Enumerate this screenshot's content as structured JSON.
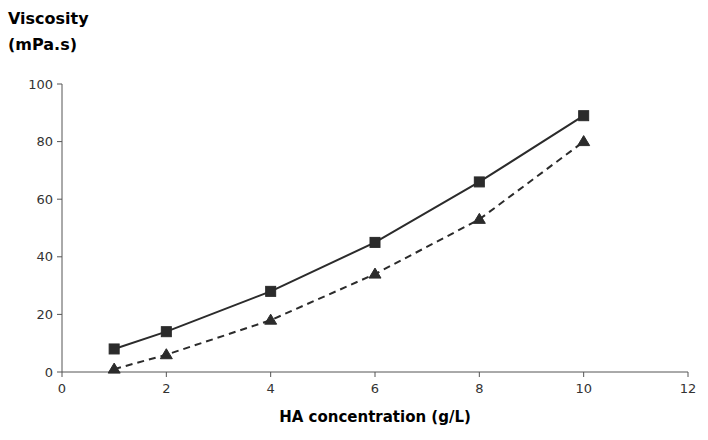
{
  "chart_data": {
    "type": "line",
    "xlabel": "HA concentration (g/L)",
    "ylabel": [
      "Viscosity",
      "(mPa.s)"
    ],
    "x": [
      1,
      2,
      4,
      6,
      8,
      10
    ],
    "series": [
      {
        "color": "#2b2b2b",
        "marker": "square",
        "line_style": "solid",
        "values": [
          8,
          14,
          28,
          45,
          66,
          89
        ]
      },
      {
        "color": "#2b2b2b",
        "marker": "triangle",
        "line_style": "dashed",
        "values": [
          1,
          6,
          18,
          34,
          53,
          80
        ]
      }
    ],
    "xlim": [
      0,
      12
    ],
    "ylim": [
      0,
      100
    ],
    "xticks": [
      0,
      2,
      4,
      6,
      8,
      10,
      12
    ],
    "yticks": [
      0,
      20,
      40,
      60,
      80,
      100
    ],
    "grid": false
  }
}
